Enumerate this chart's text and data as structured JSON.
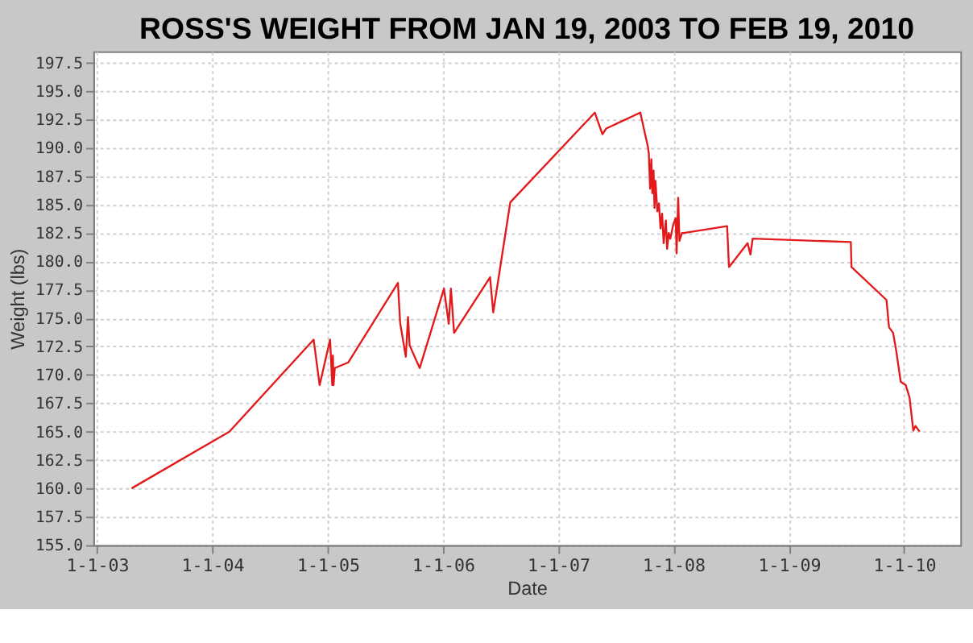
{
  "chart_data": {
    "type": "line",
    "title": "ROSS'S WEIGHT FROM JAN 19, 2003 TO FEB 19, 2010",
    "xlabel": "Date",
    "ylabel": "Weight (lbs)",
    "x": [
      "2003-04-20",
      "2004-02-24",
      "2004-11-17",
      "2004-12-06",
      "2005-01-08",
      "2005-01-15",
      "2005-01-17",
      "2005-01-19",
      "2005-01-23",
      "2005-03-07",
      "2005-08-11",
      "2005-08-18",
      "2005-09-05",
      "2005-09-12",
      "2005-09-17",
      "2005-10-19",
      "2006-01-04",
      "2006-01-19",
      "2006-01-26",
      "2006-02-05",
      "2006-05-30",
      "2006-06-09",
      "2006-08-02",
      "2007-04-27",
      "2007-05-21",
      "2007-06-02",
      "2007-09-18",
      "2007-10-12",
      "2007-10-15",
      "2007-10-19",
      "2007-10-23",
      "2007-10-26",
      "2007-10-30",
      "2007-11-02",
      "2007-11-05",
      "2007-11-11",
      "2007-11-16",
      "2007-11-21",
      "2007-11-26",
      "2007-12-01",
      "2007-12-08",
      "2007-12-12",
      "2007-12-17",
      "2007-12-22",
      "2008-01-01",
      "2008-01-08",
      "2008-01-11",
      "2008-01-16",
      "2008-01-20",
      "2008-01-28",
      "2008-02-03",
      "2008-06-19",
      "2008-06-25",
      "2008-08-23",
      "2008-09-01",
      "2008-09-08",
      "2009-07-16",
      "2009-07-18",
      "2009-11-06",
      "2009-11-14",
      "2009-11-27",
      "2009-12-07",
      "2009-12-21",
      "2010-01-06",
      "2010-01-18",
      "2010-01-30",
      "2010-02-06",
      "2010-02-19"
    ],
    "series": [
      {
        "color": "#e31a1c",
        "values": [
          160.0,
          165.0,
          173.1,
          169.1,
          173.1,
          169.1,
          171.7,
          169.1,
          170.6,
          171.1,
          178.1,
          174.6,
          171.6,
          175.1,
          172.6,
          170.6,
          177.6,
          174.5,
          177.6,
          173.7,
          178.6,
          175.5,
          185.2,
          193.1,
          191.2,
          191.7,
          193.1,
          190.1,
          189.5,
          186.4,
          189.0,
          186.0,
          188.0,
          184.7,
          187.1,
          184.4,
          185.1,
          182.9,
          184.2,
          181.6,
          183.6,
          181.1,
          182.5,
          182.0,
          183.3,
          183.8,
          180.7,
          185.6,
          181.8,
          182.5,
          182.5,
          183.1,
          179.5,
          181.6,
          180.6,
          182.0,
          181.7,
          179.5,
          176.6,
          174.2,
          173.7,
          172.1,
          169.4,
          169.1,
          168.0,
          165.1,
          165.5,
          165.0
        ]
      }
    ],
    "xlim": [
      "2002-12-20",
      "2010-06-28"
    ],
    "xticks": [
      {
        "value": "2003-01-01",
        "label": "1-1-03"
      },
      {
        "value": "2004-01-01",
        "label": "1-1-04"
      },
      {
        "value": "2005-01-01",
        "label": "1-1-05"
      },
      {
        "value": "2006-01-01",
        "label": "1-1-06"
      },
      {
        "value": "2007-01-01",
        "label": "1-1-07"
      },
      {
        "value": "2008-01-01",
        "label": "1-1-08"
      },
      {
        "value": "2009-01-01",
        "label": "1-1-09"
      },
      {
        "value": "2010-01-01",
        "label": "1-1-10"
      }
    ],
    "ylim": [
      155,
      198.5
    ],
    "yticks": [
      {
        "value": 155,
        "label": "155.0"
      },
      {
        "value": 157.5,
        "label": "157.5"
      },
      {
        "value": 160,
        "label": "160.0"
      },
      {
        "value": 162.5,
        "label": "162.5"
      },
      {
        "value": 165,
        "label": "165.0"
      },
      {
        "value": 167.5,
        "label": "167.5"
      },
      {
        "value": 170,
        "label": "170.0"
      },
      {
        "value": 172.5,
        "label": "172.5"
      },
      {
        "value": 175,
        "label": "175.0"
      },
      {
        "value": 177.5,
        "label": "177.5"
      },
      {
        "value": 180,
        "label": "180.0"
      },
      {
        "value": 182.5,
        "label": "182.5"
      },
      {
        "value": 185,
        "label": "185.0"
      },
      {
        "value": 187.5,
        "label": "187.5"
      },
      {
        "value": 190,
        "label": "190.0"
      },
      {
        "value": 192.5,
        "label": "192.5"
      },
      {
        "value": 195,
        "label": "195.0"
      },
      {
        "value": 197.5,
        "label": "197.5"
      }
    ],
    "grid": true,
    "marker": "none",
    "line_style": "solid"
  }
}
